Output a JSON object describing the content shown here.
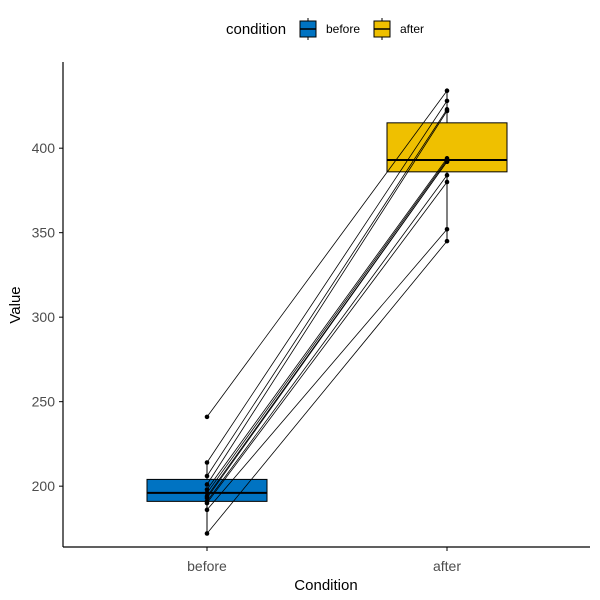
{
  "chart_data": {
    "type": "boxplot",
    "xlabel": "Condition",
    "ylabel": "Value",
    "categories": [
      "before",
      "after"
    ],
    "ylim": [
      164,
      451
    ],
    "yticks": [
      200,
      250,
      300,
      350,
      400
    ],
    "legend": {
      "title": "condition",
      "position": "top",
      "items": [
        {
          "label": "before",
          "color": "#0073C2"
        },
        {
          "label": "after",
          "color": "#EFC000"
        }
      ]
    },
    "box_stats": [
      {
        "category": "before",
        "q1": 191,
        "median": 196,
        "q3": 204,
        "whisker_low": 172,
        "whisker_high": 214
      },
      {
        "category": "after",
        "q1": 386,
        "median": 393,
        "q3": 415,
        "whisker_low": 345,
        "whisker_high": 435
      }
    ],
    "pairs": [
      {
        "before": 241,
        "after": 434
      },
      {
        "before": 214,
        "after": 428
      },
      {
        "before": 206,
        "after": 423
      },
      {
        "before": 201,
        "after": 422
      },
      {
        "before": 198,
        "after": 394
      },
      {
        "before": 196,
        "after": 393
      },
      {
        "before": 194,
        "after": 392
      },
      {
        "before": 193,
        "after": 392
      },
      {
        "before": 191,
        "after": 384
      },
      {
        "before": 190,
        "after": 380
      },
      {
        "before": 186,
        "after": 352
      },
      {
        "before": 172,
        "after": 345
      }
    ],
    "grid": false
  }
}
